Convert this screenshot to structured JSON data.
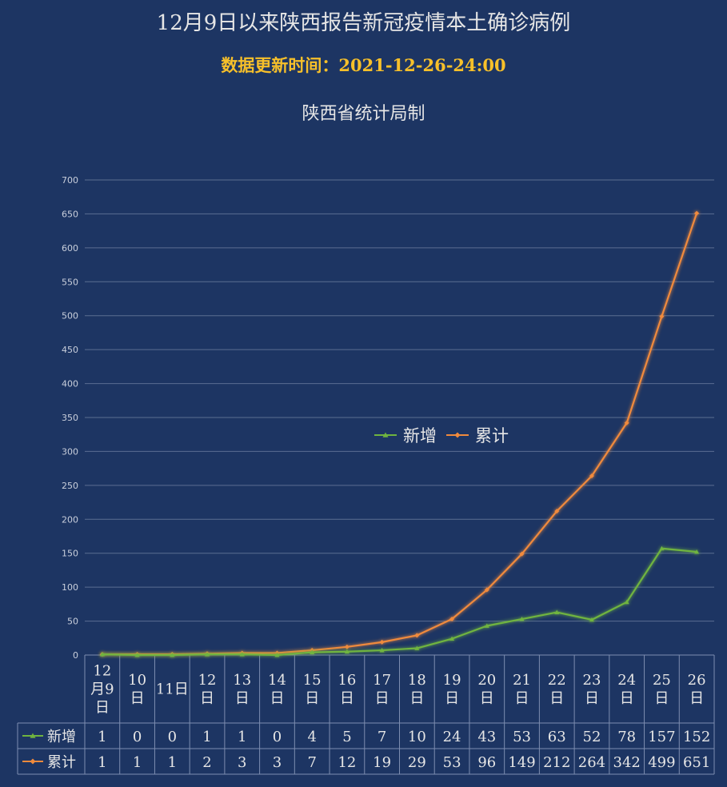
{
  "title": "12月9日以来陕西报告新冠疫情本土确诊病例",
  "subtitle": "数据更新时间：2021-12-26-24:00",
  "source": "陕西省统计局制",
  "colors": {
    "background": "#1d3563",
    "new_series": "#6fb43f",
    "cumulative_series": "#f08a3c",
    "grid": "#5b6e92",
    "text": "#e6e6e6",
    "subtitle": "#f7c02a"
  },
  "chart_data": {
    "type": "line",
    "title": "12月9日以来陕西报告新冠疫情本土确诊病例",
    "ylim": [
      0,
      700
    ],
    "yticks": [
      0,
      50,
      100,
      150,
      200,
      250,
      300,
      350,
      400,
      450,
      500,
      550,
      600,
      650,
      700
    ],
    "categories": [
      "12月9日",
      "10日",
      "11日",
      "12日",
      "13日",
      "14日",
      "15日",
      "16日",
      "17日",
      "18日",
      "19日",
      "20日",
      "21日",
      "22日",
      "23日",
      "24日",
      "25日",
      "26日"
    ],
    "category_lines": [
      [
        "12",
        "月9",
        "日"
      ],
      [
        "10",
        "日"
      ],
      [
        "11日"
      ],
      [
        "12",
        "日"
      ],
      [
        "13",
        "日"
      ],
      [
        "14",
        "日"
      ],
      [
        "15",
        "日"
      ],
      [
        "16",
        "日"
      ],
      [
        "17",
        "日"
      ],
      [
        "18",
        "日"
      ],
      [
        "19",
        "日"
      ],
      [
        "20",
        "日"
      ],
      [
        "21",
        "日"
      ],
      [
        "22",
        "日"
      ],
      [
        "23",
        "日"
      ],
      [
        "24",
        "日"
      ],
      [
        "25",
        "日"
      ],
      [
        "26",
        "日"
      ]
    ],
    "series": [
      {
        "name": "新增",
        "marker": "triangle",
        "color": "#6fb43f",
        "values": [
          1,
          0,
          0,
          1,
          1,
          0,
          4,
          5,
          7,
          10,
          24,
          43,
          53,
          63,
          52,
          78,
          157,
          152
        ]
      },
      {
        "name": "累计",
        "marker": "diamond",
        "color": "#f08a3c",
        "values": [
          1,
          1,
          1,
          2,
          3,
          3,
          7,
          12,
          19,
          29,
          53,
          96,
          149,
          212,
          264,
          342,
          499,
          651
        ]
      }
    ],
    "legend_position": "center",
    "grid": true,
    "data_table": true
  }
}
